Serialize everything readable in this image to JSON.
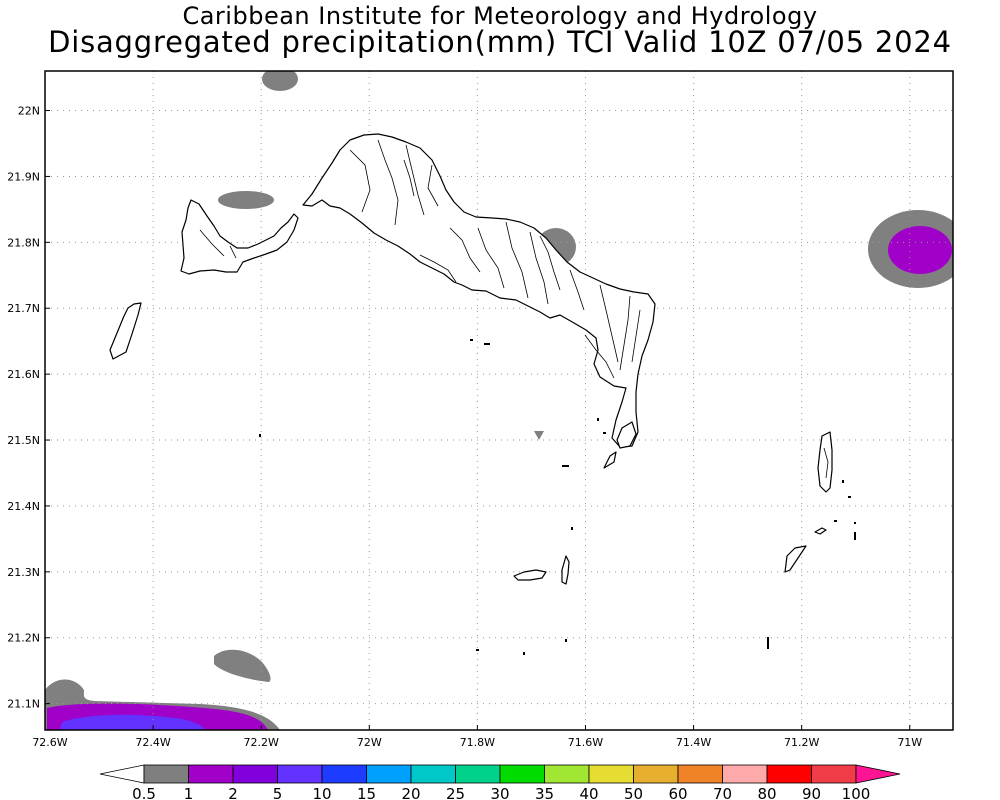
{
  "header": {
    "title_line1": "Caribbean Institute for Meteorology and Hydrology",
    "title_line2": "Disaggregated precipitation(mm) TCI Valid 10Z 07/05 2024"
  },
  "axes": {
    "lat_labels": [
      "22N",
      "21.9N",
      "21.8N",
      "21.7N",
      "21.6N",
      "21.5N",
      "21.4N",
      "21.3N",
      "21.2N",
      "21.1N"
    ],
    "lat_values": [
      22.0,
      21.9,
      21.8,
      21.7,
      21.6,
      21.5,
      21.4,
      21.3,
      21.2,
      21.1
    ],
    "lon_labels": [
      "72.6W",
      "72.4W",
      "72.2W",
      "72W",
      "71.8W",
      "71.6W",
      "71.4W",
      "71.2W",
      "71W"
    ],
    "lon_values": [
      -72.6,
      -72.4,
      -72.2,
      -72.0,
      -71.8,
      -71.6,
      -71.4,
      -71.2,
      -71.0
    ],
    "lat_range": [
      21.06,
      22.06
    ],
    "lon_range": [
      -72.6,
      -70.92
    ],
    "grid": true
  },
  "colorbar": {
    "labels": [
      "0.5",
      "1",
      "2",
      "5",
      "10",
      "15",
      "20",
      "25",
      "30",
      "35",
      "40",
      "50",
      "60",
      "70",
      "80",
      "90",
      "100"
    ],
    "colors": [
      "#7f7f7f",
      "#a000c8",
      "#8200dc",
      "#6432ff",
      "#1e3cff",
      "#00a0ff",
      "#00c8c8",
      "#00d28c",
      "#00dc00",
      "#a0e632",
      "#e6dc32",
      "#e6af2d",
      "#f08228",
      "#ffaaaa",
      "#ff0000",
      "#f03c46"
    ],
    "under_color": "#ffffff",
    "over_color": "#ff1493"
  },
  "precip_areas": [
    {
      "name": "north-edge",
      "level": "0.5-1"
    },
    {
      "name": "northwest",
      "level": "0.5-1"
    },
    {
      "name": "north-caicos",
      "level": "0.5-1"
    },
    {
      "name": "east-edge",
      "level": "1-2"
    },
    {
      "name": "south-central",
      "level": "0.5-1"
    },
    {
      "name": "southwest-corner",
      "level": "2-5"
    }
  ]
}
